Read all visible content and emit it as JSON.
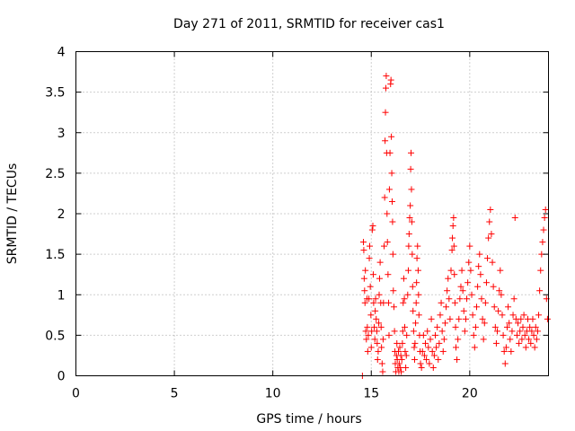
{
  "chart_data": {
    "type": "scatter",
    "title": "Day 271 of 2011, SRMTID for receiver cas1",
    "xlabel": "GPS time / hours",
    "ylabel": "SRMTID / TECUs",
    "xlim": [
      0,
      24
    ],
    "ylim": [
      0,
      4
    ],
    "xticks": [
      0,
      5,
      10,
      15,
      20
    ],
    "yticks": [
      0,
      0.5,
      1,
      1.5,
      2,
      2.5,
      3,
      3.5,
      4
    ],
    "xtick_labels": [
      "0",
      "5",
      "10",
      "15",
      "20"
    ],
    "ytick_labels": [
      "0",
      "0.5",
      "1",
      "1.5",
      "2",
      "2.5",
      "3",
      "3.5",
      "4"
    ],
    "grid": true,
    "marker": "plus",
    "color": "#ff0000",
    "series": [
      {
        "name": "SRMTID",
        "points": [
          [
            14.55,
            0.0
          ],
          [
            14.6,
            1.65
          ],
          [
            14.62,
            1.55
          ],
          [
            14.64,
            1.2
          ],
          [
            14.66,
            1.05
          ],
          [
            14.68,
            0.9
          ],
          [
            14.7,
            1.3
          ],
          [
            14.72,
            0.55
          ],
          [
            14.75,
            0.45
          ],
          [
            14.78,
            0.95
          ],
          [
            14.8,
            0.6
          ],
          [
            14.82,
            0.3
          ],
          [
            14.85,
            0.5
          ],
          [
            14.88,
            0.95
          ],
          [
            14.9,
            1.45
          ],
          [
            14.92,
            1.6
          ],
          [
            14.95,
            1.1
          ],
          [
            14.98,
            0.75
          ],
          [
            15.0,
            0.35
          ],
          [
            15.02,
            0.55
          ],
          [
            15.05,
            1.8
          ],
          [
            15.08,
            1.85
          ],
          [
            15.1,
            1.25
          ],
          [
            15.12,
            0.9
          ],
          [
            15.15,
            0.6
          ],
          [
            15.18,
            0.45
          ],
          [
            15.2,
            0.8
          ],
          [
            15.22,
            0.95
          ],
          [
            15.25,
            0.7
          ],
          [
            15.28,
            0.55
          ],
          [
            15.3,
            0.4
          ],
          [
            15.32,
            0.2
          ],
          [
            15.35,
            0.3
          ],
          [
            15.38,
            0.65
          ],
          [
            15.4,
            1.0
          ],
          [
            15.42,
            1.2
          ],
          [
            15.45,
            1.4
          ],
          [
            15.48,
            0.9
          ],
          [
            15.5,
            0.6
          ],
          [
            15.52,
            0.35
          ],
          [
            15.55,
            0.15
          ],
          [
            15.58,
            0.05
          ],
          [
            15.6,
            0.45
          ],
          [
            15.62,
            0.9
          ],
          [
            15.65,
            1.6
          ],
          [
            15.68,
            2.2
          ],
          [
            15.7,
            2.9
          ],
          [
            15.72,
            3.25
          ],
          [
            15.74,
            3.55
          ],
          [
            15.76,
            3.7
          ],
          [
            15.78,
            2.75
          ],
          [
            15.8,
            2.0
          ],
          [
            15.82,
            1.65
          ],
          [
            15.85,
            1.25
          ],
          [
            15.88,
            0.9
          ],
          [
            15.9,
            0.5
          ],
          [
            15.92,
            2.3
          ],
          [
            15.95,
            2.75
          ],
          [
            15.98,
            3.6
          ],
          [
            16.0,
            3.65
          ],
          [
            16.02,
            2.95
          ],
          [
            16.04,
            2.5
          ],
          [
            16.06,
            2.15
          ],
          [
            16.08,
            1.9
          ],
          [
            16.1,
            1.5
          ],
          [
            16.12,
            1.05
          ],
          [
            16.15,
            0.85
          ],
          [
            16.18,
            0.55
          ],
          [
            16.2,
            0.3
          ],
          [
            16.22,
            0.15
          ],
          [
            16.25,
            0.05
          ],
          [
            16.28,
            0.25
          ],
          [
            16.3,
            0.4
          ],
          [
            16.32,
            0.2
          ],
          [
            16.35,
            0.1
          ],
          [
            16.38,
            0.3
          ],
          [
            16.4,
            0.05
          ],
          [
            16.42,
            0.15
          ],
          [
            16.45,
            0.35
          ],
          [
            16.48,
            0.1
          ],
          [
            16.5,
            0.25
          ],
          [
            16.52,
            0.05
          ],
          [
            16.55,
            0.2
          ],
          [
            16.58,
            0.4
          ],
          [
            16.6,
            0.55
          ],
          [
            16.62,
            0.9
          ],
          [
            16.65,
            1.2
          ],
          [
            16.68,
            0.95
          ],
          [
            16.7,
            0.6
          ],
          [
            16.72,
            0.3
          ],
          [
            16.75,
            0.1
          ],
          [
            16.78,
            0.25
          ],
          [
            16.8,
            0.5
          ],
          [
            16.85,
            1.0
          ],
          [
            16.88,
            1.3
          ],
          [
            16.9,
            1.6
          ],
          [
            16.92,
            1.75
          ],
          [
            16.95,
            1.95
          ],
          [
            16.98,
            2.1
          ],
          [
            17.0,
            2.55
          ],
          [
            17.02,
            2.75
          ],
          [
            17.04,
            2.3
          ],
          [
            17.06,
            1.9
          ],
          [
            17.08,
            1.5
          ],
          [
            17.1,
            1.1
          ],
          [
            17.12,
            0.8
          ],
          [
            17.15,
            0.55
          ],
          [
            17.18,
            0.35
          ],
          [
            17.2,
            0.2
          ],
          [
            17.22,
            0.4
          ],
          [
            17.25,
            0.65
          ],
          [
            17.28,
            0.9
          ],
          [
            17.3,
            1.15
          ],
          [
            17.32,
            1.45
          ],
          [
            17.35,
            1.6
          ],
          [
            17.38,
            1.3
          ],
          [
            17.4,
            1.0
          ],
          [
            17.42,
            0.75
          ],
          [
            17.45,
            0.5
          ],
          [
            17.48,
            0.3
          ],
          [
            17.5,
            0.15
          ],
          [
            17.55,
            0.1
          ],
          [
            17.6,
            0.3
          ],
          [
            17.65,
            0.5
          ],
          [
            17.7,
            0.25
          ],
          [
            17.75,
            0.4
          ],
          [
            17.8,
            0.2
          ],
          [
            17.85,
            0.55
          ],
          [
            17.9,
            0.35
          ],
          [
            17.95,
            0.15
          ],
          [
            18.0,
            0.45
          ],
          [
            18.05,
            0.7
          ],
          [
            18.1,
            0.3
          ],
          [
            18.15,
            0.1
          ],
          [
            18.2,
            0.25
          ],
          [
            18.25,
            0.5
          ],
          [
            18.3,
            0.35
          ],
          [
            18.35,
            0.6
          ],
          [
            18.4,
            0.2
          ],
          [
            18.45,
            0.4
          ],
          [
            18.5,
            0.75
          ],
          [
            18.55,
            0.9
          ],
          [
            18.6,
            0.55
          ],
          [
            18.65,
            0.3
          ],
          [
            18.7,
            0.45
          ],
          [
            18.75,
            0.65
          ],
          [
            18.8,
            0.85
          ],
          [
            18.85,
            1.05
          ],
          [
            18.9,
            1.2
          ],
          [
            18.95,
            0.95
          ],
          [
            19.0,
            0.7
          ],
          [
            19.05,
            1.3
          ],
          [
            19.1,
            1.55
          ],
          [
            19.12,
            1.7
          ],
          [
            19.15,
            1.85
          ],
          [
            19.18,
            1.95
          ],
          [
            19.2,
            1.6
          ],
          [
            19.22,
            1.25
          ],
          [
            19.25,
            0.9
          ],
          [
            19.28,
            0.6
          ],
          [
            19.3,
            0.35
          ],
          [
            19.35,
            0.2
          ],
          [
            19.4,
            0.45
          ],
          [
            19.45,
            0.7
          ],
          [
            19.5,
            0.95
          ],
          [
            19.55,
            1.1
          ],
          [
            19.6,
            1.3
          ],
          [
            19.65,
            1.05
          ],
          [
            19.7,
            0.8
          ],
          [
            19.75,
            0.55
          ],
          [
            19.8,
            0.7
          ],
          [
            19.85,
            0.95
          ],
          [
            19.9,
            1.15
          ],
          [
            19.95,
            1.4
          ],
          [
            20.0,
            1.6
          ],
          [
            20.05,
            1.3
          ],
          [
            20.1,
            1.0
          ],
          [
            20.15,
            0.75
          ],
          [
            20.2,
            0.5
          ],
          [
            20.25,
            0.35
          ],
          [
            20.3,
            0.6
          ],
          [
            20.35,
            0.85
          ],
          [
            20.4,
            1.1
          ],
          [
            20.45,
            1.35
          ],
          [
            20.5,
            1.5
          ],
          [
            20.55,
            1.25
          ],
          [
            20.6,
            0.95
          ],
          [
            20.65,
            0.7
          ],
          [
            20.7,
            0.45
          ],
          [
            20.75,
            0.65
          ],
          [
            20.8,
            0.9
          ],
          [
            20.85,
            1.15
          ],
          [
            20.9,
            1.45
          ],
          [
            20.95,
            1.7
          ],
          [
            21.0,
            1.9
          ],
          [
            21.05,
            2.05
          ],
          [
            21.1,
            1.75
          ],
          [
            21.15,
            1.4
          ],
          [
            21.2,
            1.1
          ],
          [
            21.25,
            0.85
          ],
          [
            21.3,
            0.6
          ],
          [
            21.35,
            0.4
          ],
          [
            21.4,
            0.55
          ],
          [
            21.45,
            0.8
          ],
          [
            21.5,
            1.05
          ],
          [
            21.55,
            1.3
          ],
          [
            21.6,
            1.0
          ],
          [
            21.65,
            0.75
          ],
          [
            21.7,
            0.5
          ],
          [
            21.75,
            0.3
          ],
          [
            21.8,
            0.15
          ],
          [
            21.85,
            0.35
          ],
          [
            21.9,
            0.6
          ],
          [
            21.95,
            0.85
          ],
          [
            22.0,
            0.65
          ],
          [
            22.05,
            0.45
          ],
          [
            22.1,
            0.3
          ],
          [
            22.15,
            0.55
          ],
          [
            22.2,
            0.75
          ],
          [
            22.25,
            0.95
          ],
          [
            22.3,
            1.95
          ],
          [
            22.35,
            0.7
          ],
          [
            22.4,
            0.5
          ],
          [
            22.45,
            0.65
          ],
          [
            22.5,
            0.4
          ],
          [
            22.55,
            0.55
          ],
          [
            22.6,
            0.7
          ],
          [
            22.65,
            0.45
          ],
          [
            22.7,
            0.6
          ],
          [
            22.75,
            0.75
          ],
          [
            22.8,
            0.5
          ],
          [
            22.85,
            0.35
          ],
          [
            22.9,
            0.55
          ],
          [
            22.95,
            0.7
          ],
          [
            23.0,
            0.45
          ],
          [
            23.05,
            0.6
          ],
          [
            23.1,
            0.4
          ],
          [
            23.15,
            0.55
          ],
          [
            23.2,
            0.7
          ],
          [
            23.25,
            0.5
          ],
          [
            23.3,
            0.35
          ],
          [
            23.35,
            0.6
          ],
          [
            23.4,
            0.45
          ],
          [
            23.45,
            0.55
          ],
          [
            23.5,
            0.75
          ],
          [
            23.55,
            1.05
          ],
          [
            23.6,
            1.3
          ],
          [
            23.65,
            1.5
          ],
          [
            23.7,
            1.65
          ],
          [
            23.75,
            1.8
          ],
          [
            23.8,
            1.95
          ],
          [
            23.85,
            2.05
          ],
          [
            23.9,
            0.95
          ],
          [
            23.95,
            0.7
          ]
        ]
      }
    ]
  }
}
